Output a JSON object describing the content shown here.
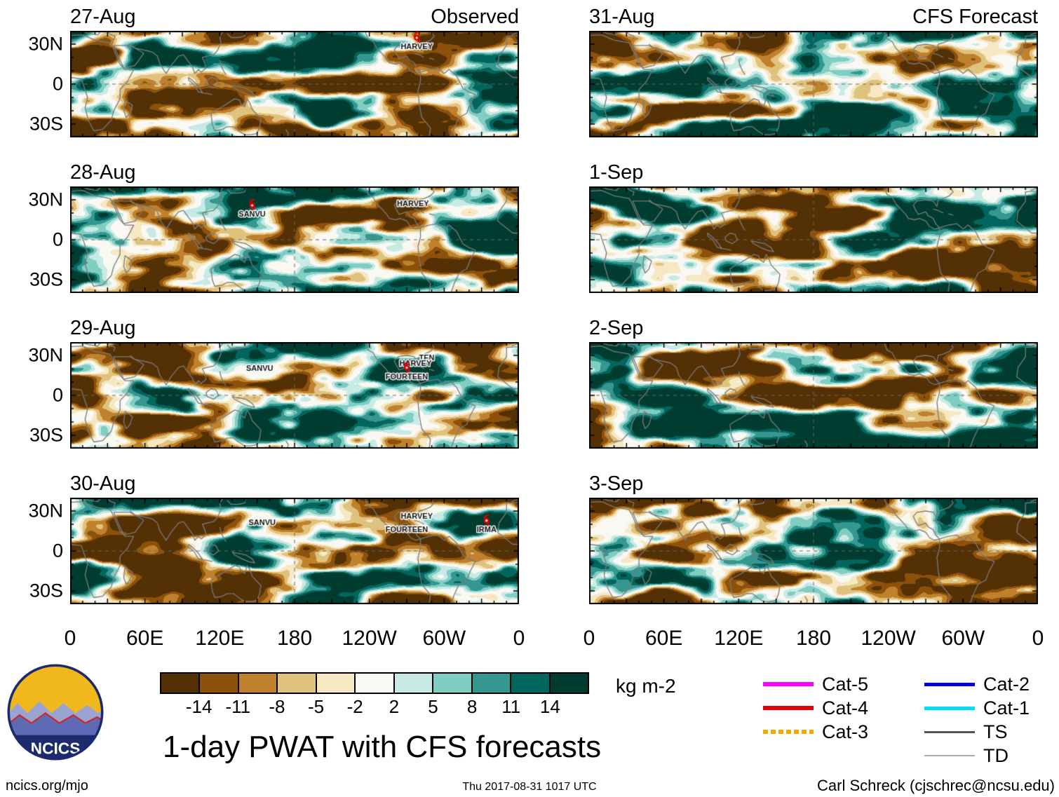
{
  "chart_data": {
    "type": "heatmap",
    "title": "1-day PWAT with CFS forecasts",
    "header": {
      "observed": "Observed",
      "forecast": "CFS Forecast"
    },
    "x_ticks": [
      "0",
      "60E",
      "120E",
      "180",
      "120W",
      "60W",
      "0"
    ],
    "y_ticks": [
      "30N",
      "0",
      "30S"
    ],
    "lon_range_deg": [
      0,
      360
    ],
    "lat_range_deg": [
      40,
      -40
    ],
    "colorbar": {
      "units": "kg m-2",
      "levels": [
        -14,
        -11,
        -8,
        -5,
        -2,
        2,
        5,
        8,
        11,
        14
      ],
      "colors": [
        "#543005",
        "#8c510a",
        "#bf812d",
        "#dfc27d",
        "#f6e8c3",
        "#f9f8f2",
        "#c7eae5",
        "#80cdc1",
        "#35978f",
        "#01665e",
        "#003c30"
      ]
    },
    "panels": {
      "observed": [
        {
          "date": "27-Aug",
          "storms": [
            {
              "name": "HARVEY",
              "lon": 278,
              "lat": 29,
              "marker": true
            }
          ]
        },
        {
          "date": "28-Aug",
          "storms": [
            {
              "name": "SANVU",
              "lon": 146,
              "lat": 20,
              "marker": true
            },
            {
              "name": "HARVEY",
              "lon": 275,
              "lat": 28,
              "marker": false
            }
          ]
        },
        {
          "date": "29-Aug",
          "storms": [
            {
              "name": "SANVU",
              "lon": 152,
              "lat": 21,
              "marker": false
            },
            {
              "name": "TEN",
              "lon": 286,
              "lat": 29,
              "marker": false
            },
            {
              "name": "HARVEY",
              "lon": 277,
              "lat": 25,
              "marker": false
            },
            {
              "name": "FOURTEEN",
              "lon": 270,
              "lat": 15,
              "marker": true
            }
          ]
        },
        {
          "date": "30-Aug",
          "storms": [
            {
              "name": "SANVU",
              "lon": 154,
              "lat": 22,
              "marker": false
            },
            {
              "name": "HARVEY",
              "lon": 278,
              "lat": 27,
              "marker": false
            },
            {
              "name": "FOURTEEN",
              "lon": 270,
              "lat": 17,
              "marker": false
            },
            {
              "name": "IRMA",
              "lon": 334,
              "lat": 17,
              "marker": true
            }
          ]
        }
      ],
      "forecast": [
        {
          "date": "31-Aug",
          "storms": []
        },
        {
          "date": "1-Sep",
          "storms": []
        },
        {
          "date": "2-Sep",
          "storms": []
        },
        {
          "date": "3-Sep",
          "storms": []
        }
      ]
    },
    "storm_legend": {
      "column_a": [
        {
          "label": "Cat-5",
          "color": "#ff00ff",
          "width": 6,
          "dash": false
        },
        {
          "label": "Cat-4",
          "color": "#e60000",
          "width": 6,
          "dash": false
        },
        {
          "label": "Cat-3",
          "color": "#f5a800",
          "width": 6,
          "dash": true
        }
      ],
      "column_b": [
        {
          "label": "Cat-2",
          "color": "#0000e0",
          "width": 5,
          "dash": false
        },
        {
          "label": "Cat-1",
          "color": "#00e0f0",
          "width": 5,
          "dash": false
        },
        {
          "label": "TS",
          "color": "#555555",
          "width": 3,
          "dash": false
        },
        {
          "label": "TD",
          "color": "#aaaaaa",
          "width": 2,
          "dash": false
        }
      ]
    }
  },
  "footer": {
    "left": "ncics.org/mjo",
    "center": "Thu 2017-08-31 1017 UTC",
    "right": "Carl Schreck (cjschrec@ncsu.edu)"
  },
  "logo_text": "NCICS"
}
